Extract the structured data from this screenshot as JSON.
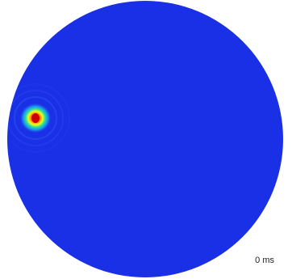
{
  "time_label": "0 ms",
  "colors": {
    "background": "#ffffff",
    "field": "#1a30e6",
    "hotspot_core": "#e10000",
    "hotspot_mid": "#f4ff1a",
    "hotspot_outer": "#27e0a0"
  }
}
